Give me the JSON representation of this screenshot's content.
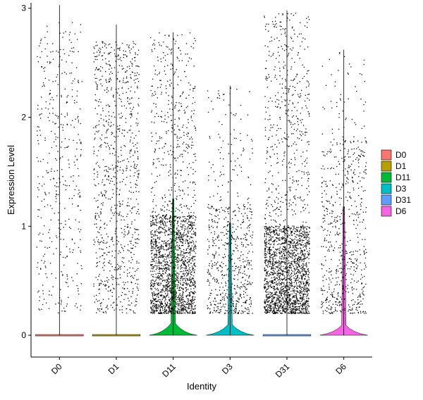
{
  "chart_data": {
    "type": "violin",
    "xlabel": "Identity",
    "ylabel": "Expression Level",
    "ylim": [
      -0.2,
      3.05
    ],
    "yticks": [
      0,
      1,
      2,
      3
    ],
    "grid": false,
    "legend_position": "right",
    "categories": [
      "D0",
      "D1",
      "D11",
      "D3",
      "D31",
      "D6"
    ],
    "series": [
      {
        "name": "D0",
        "color": "#F8766D",
        "max": 3.03,
        "upper_spread": 1.3,
        "violin_base_width": 0.0,
        "points": 420
      },
      {
        "name": "D1",
        "color": "#B79F00",
        "max": 2.85,
        "upper_spread": 1.3,
        "violin_base_width": 0.0,
        "points": 900
      },
      {
        "name": "D11",
        "color": "#00BA38",
        "max": 2.78,
        "upper_spread": 0.45,
        "violin_base_width": 0.85,
        "points": 2100
      },
      {
        "name": "D3",
        "color": "#00BFC4",
        "max": 2.29,
        "upper_spread": 0.5,
        "violin_base_width": 0.75,
        "points": 650
      },
      {
        "name": "D31",
        "color": "#619CFF",
        "max": 2.98,
        "upper_spread": 0.4,
        "violin_base_width": 0.0,
        "points": 2300
      },
      {
        "name": "D6",
        "color": "#F564E3",
        "max": 2.62,
        "upper_spread": 0.8,
        "violin_base_width": 0.7,
        "points": 650
      }
    ]
  }
}
